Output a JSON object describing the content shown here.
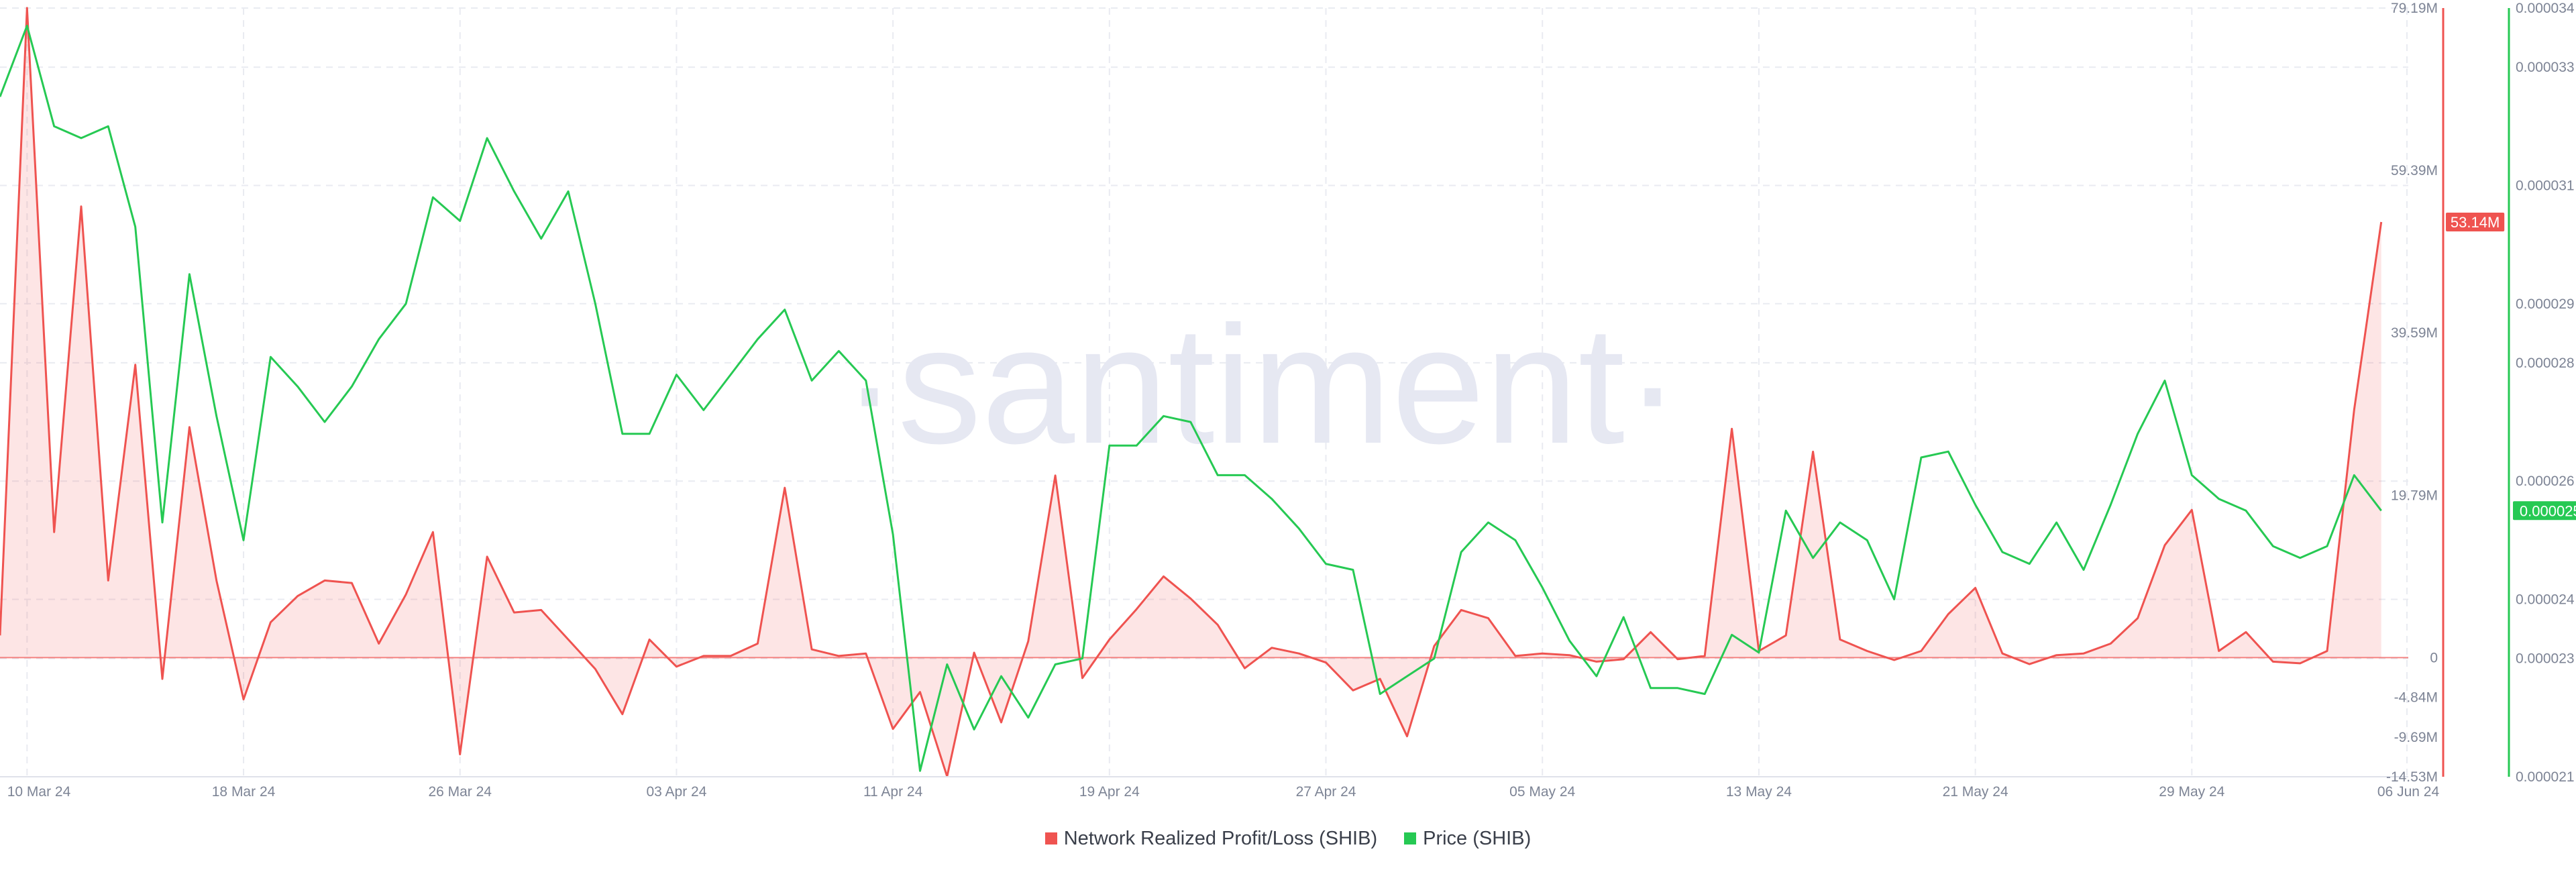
{
  "watermark": "·santiment·",
  "legend": {
    "items": [
      {
        "label": "Network Realized Profit/Loss (SHIB)",
        "color": "#ef5350"
      },
      {
        "label": "Price (SHIB)",
        "color": "#26c953"
      }
    ]
  },
  "badges": {
    "profit_loss": {
      "label": "53.14M",
      "color": "#ef5350"
    },
    "price": {
      "label": "0.000025",
      "color": "#26c953"
    }
  },
  "chart_data": {
    "type": "line",
    "x_tick_labels": [
      "10 Mar 24",
      "18 Mar 24",
      "26 Mar 24",
      "03 Apr 24",
      "11 Apr 24",
      "19 Apr 24",
      "27 Apr 24",
      "05 May 24",
      "13 May 24",
      "21 May 24",
      "29 May 24",
      "06 Jun 24"
    ],
    "x_range": [
      "2024-03-09",
      "2024-06-06"
    ],
    "grid": true,
    "legend_position": "bottom-center",
    "axes": {
      "profit_loss": {
        "side": "right",
        "range": [
          -14.53,
          79.19
        ],
        "unit": "M",
        "ticks": [
          79.19,
          59.39,
          39.59,
          19.79,
          0,
          -4.84,
          -9.69,
          -14.53
        ],
        "tick_labels": [
          "79.19M",
          "59.39M",
          "39.59M",
          "19.79M",
          "0",
          "-4.84M",
          "-9.69M",
          "-14.53M"
        ]
      },
      "price": {
        "side": "right",
        "range": [
          2.1e-05,
          3.4e-05
        ],
        "ticks": [
          3.4e-05,
          3.3e-05,
          3.1e-05,
          2.9e-05,
          2.8e-05,
          2.6e-05,
          2.4e-05,
          2.3e-05,
          2.1e-05
        ],
        "tick_labels": [
          "0.000034",
          "0.000033",
          "0.000031",
          "0.000029",
          "0.000028",
          "0.000026",
          "0.000024",
          "0.000023",
          "0.000021"
        ]
      }
    },
    "series": [
      {
        "name": "Network Realized Profit/Loss (SHIB)",
        "axis": "profit_loss",
        "color": "#ef5350",
        "area": true,
        "points": [
          [
            "2024-03-09",
            2.7
          ],
          [
            "2024-03-10",
            79.2
          ],
          [
            "2024-03-11",
            15.3
          ],
          [
            "2024-03-12",
            55.0
          ],
          [
            "2024-03-13",
            9.4
          ],
          [
            "2024-03-14",
            35.7
          ],
          [
            "2024-03-15",
            -2.6
          ],
          [
            "2024-03-16",
            28.1
          ],
          [
            "2024-03-17",
            9.4
          ],
          [
            "2024-03-18",
            -5.1
          ],
          [
            "2024-03-19",
            4.3
          ],
          [
            "2024-03-20",
            7.5
          ],
          [
            "2024-03-21",
            9.4
          ],
          [
            "2024-03-22",
            9.1
          ],
          [
            "2024-03-23",
            1.7
          ],
          [
            "2024-03-24",
            7.7
          ],
          [
            "2024-03-25",
            15.3
          ],
          [
            "2024-03-26",
            -11.8
          ],
          [
            "2024-03-27",
            12.3
          ],
          [
            "2024-03-28",
            5.5
          ],
          [
            "2024-03-29",
            5.8
          ],
          [
            "2024-03-30",
            2.2
          ],
          [
            "2024-03-31",
            -1.4
          ],
          [
            "2024-04-01",
            -6.9
          ],
          [
            "2024-04-02",
            2.2
          ],
          [
            "2024-04-03",
            -1.1
          ],
          [
            "2024-04-04",
            0.2
          ],
          [
            "2024-04-05",
            0.2
          ],
          [
            "2024-04-06",
            1.7
          ],
          [
            "2024-04-07",
            20.7
          ],
          [
            "2024-04-08",
            1.0
          ],
          [
            "2024-04-09",
            0.2
          ],
          [
            "2024-04-10",
            0.5
          ],
          [
            "2024-04-11",
            -8.7
          ],
          [
            "2024-04-12",
            -4.2
          ],
          [
            "2024-04-13",
            -14.5
          ],
          [
            "2024-04-14",
            0.6
          ],
          [
            "2024-04-15",
            -7.9
          ],
          [
            "2024-04-16",
            2.0
          ],
          [
            "2024-04-17",
            22.2
          ],
          [
            "2024-04-18",
            -2.5
          ],
          [
            "2024-04-19",
            2.2
          ],
          [
            "2024-04-20",
            5.9
          ],
          [
            "2024-04-21",
            9.9
          ],
          [
            "2024-04-22",
            7.2
          ],
          [
            "2024-04-23",
            4.0
          ],
          [
            "2024-04-24",
            -1.3
          ],
          [
            "2024-04-25",
            1.2
          ],
          [
            "2024-04-26",
            0.5
          ],
          [
            "2024-04-27",
            -0.6
          ],
          [
            "2024-04-28",
            -4.0
          ],
          [
            "2024-04-29",
            -2.6
          ],
          [
            "2024-04-30",
            -9.6
          ],
          [
            "2024-05-01",
            1.4
          ],
          [
            "2024-05-02",
            5.8
          ],
          [
            "2024-05-03",
            4.8
          ],
          [
            "2024-05-04",
            0.2
          ],
          [
            "2024-05-05",
            0.5
          ],
          [
            "2024-05-06",
            0.3
          ],
          [
            "2024-05-07",
            -0.5
          ],
          [
            "2024-05-08",
            -0.2
          ],
          [
            "2024-05-09",
            3.1
          ],
          [
            "2024-05-10",
            -0.2
          ],
          [
            "2024-05-11",
            0.2
          ],
          [
            "2024-05-12",
            27.9
          ],
          [
            "2024-05-13",
            0.8
          ],
          [
            "2024-05-14",
            2.7
          ],
          [
            "2024-05-15",
            25.1
          ],
          [
            "2024-05-16",
            2.2
          ],
          [
            "2024-05-17",
            0.8
          ],
          [
            "2024-05-18",
            -0.3
          ],
          [
            "2024-05-19",
            0.8
          ],
          [
            "2024-05-20",
            5.3
          ],
          [
            "2024-05-21",
            8.5
          ],
          [
            "2024-05-22",
            0.5
          ],
          [
            "2024-05-23",
            -0.8
          ],
          [
            "2024-05-24",
            0.3
          ],
          [
            "2024-05-25",
            0.5
          ],
          [
            "2024-05-26",
            1.7
          ],
          [
            "2024-05-27",
            4.8
          ],
          [
            "2024-05-28",
            13.7
          ],
          [
            "2024-05-29",
            18.0
          ],
          [
            "2024-05-30",
            0.8
          ],
          [
            "2024-05-31",
            3.1
          ],
          [
            "2024-06-01",
            -0.5
          ],
          [
            "2024-06-02",
            -0.7
          ],
          [
            "2024-06-03",
            0.8
          ],
          [
            "2024-06-04",
            30.2
          ],
          [
            "2024-06-05",
            53.1
          ]
        ]
      },
      {
        "name": "Price (SHIB)",
        "axis": "price",
        "color": "#26c953",
        "area": false,
        "points": [
          [
            "2024-03-09",
            3.25e-05
          ],
          [
            "2024-03-10",
            3.37e-05
          ],
          [
            "2024-03-11",
            3.2e-05
          ],
          [
            "2024-03-12",
            3.18e-05
          ],
          [
            "2024-03-13",
            3.2e-05
          ],
          [
            "2024-03-14",
            3.03e-05
          ],
          [
            "2024-03-15",
            2.53e-05
          ],
          [
            "2024-03-16",
            2.95e-05
          ],
          [
            "2024-03-17",
            2.71e-05
          ],
          [
            "2024-03-18",
            2.5e-05
          ],
          [
            "2024-03-19",
            2.81e-05
          ],
          [
            "2024-03-20",
            2.76e-05
          ],
          [
            "2024-03-21",
            2.7e-05
          ],
          [
            "2024-03-22",
            2.76e-05
          ],
          [
            "2024-03-23",
            2.84e-05
          ],
          [
            "2024-03-24",
            2.9e-05
          ],
          [
            "2024-03-25",
            3.08e-05
          ],
          [
            "2024-03-26",
            3.04e-05
          ],
          [
            "2024-03-27",
            3.18e-05
          ],
          [
            "2024-03-28",
            3.09e-05
          ],
          [
            "2024-03-29",
            3.01e-05
          ],
          [
            "2024-03-30",
            3.09e-05
          ],
          [
            "2024-03-31",
            2.9e-05
          ],
          [
            "2024-04-01",
            2.68e-05
          ],
          [
            "2024-04-02",
            2.68e-05
          ],
          [
            "2024-04-03",
            2.78e-05
          ],
          [
            "2024-04-04",
            2.72e-05
          ],
          [
            "2024-04-05",
            2.78e-05
          ],
          [
            "2024-04-06",
            2.84e-05
          ],
          [
            "2024-04-07",
            2.89e-05
          ],
          [
            "2024-04-08",
            2.77e-05
          ],
          [
            "2024-04-09",
            2.82e-05
          ],
          [
            "2024-04-10",
            2.77e-05
          ],
          [
            "2024-04-11",
            2.51e-05
          ],
          [
            "2024-04-12",
            2.11e-05
          ],
          [
            "2024-04-13",
            2.29e-05
          ],
          [
            "2024-04-14",
            2.18e-05
          ],
          [
            "2024-04-15",
            2.27e-05
          ],
          [
            "2024-04-16",
            2.2e-05
          ],
          [
            "2024-04-17",
            2.29e-05
          ],
          [
            "2024-04-18",
            2.3e-05
          ],
          [
            "2024-04-19",
            2.66e-05
          ],
          [
            "2024-04-20",
            2.66e-05
          ],
          [
            "2024-04-21",
            2.71e-05
          ],
          [
            "2024-04-22",
            2.7e-05
          ],
          [
            "2024-04-23",
            2.61e-05
          ],
          [
            "2024-04-24",
            2.61e-05
          ],
          [
            "2024-04-25",
            2.57e-05
          ],
          [
            "2024-04-26",
            2.52e-05
          ],
          [
            "2024-04-27",
            2.46e-05
          ],
          [
            "2024-04-28",
            2.45e-05
          ],
          [
            "2024-04-29",
            2.24e-05
          ],
          [
            "2024-04-30",
            2.27e-05
          ],
          [
            "2024-05-01",
            2.3e-05
          ],
          [
            "2024-05-02",
            2.48e-05
          ],
          [
            "2024-05-03",
            2.53e-05
          ],
          [
            "2024-05-04",
            2.5e-05
          ],
          [
            "2024-05-05",
            2.42e-05
          ],
          [
            "2024-05-06",
            2.33e-05
          ],
          [
            "2024-05-07",
            2.27e-05
          ],
          [
            "2024-05-08",
            2.37e-05
          ],
          [
            "2024-05-09",
            2.25e-05
          ],
          [
            "2024-05-10",
            2.25e-05
          ],
          [
            "2024-05-11",
            2.24e-05
          ],
          [
            "2024-05-12",
            2.34e-05
          ],
          [
            "2024-05-13",
            2.31e-05
          ],
          [
            "2024-05-14",
            2.55e-05
          ],
          [
            "2024-05-15",
            2.47e-05
          ],
          [
            "2024-05-16",
            2.53e-05
          ],
          [
            "2024-05-17",
            2.5e-05
          ],
          [
            "2024-05-18",
            2.4e-05
          ],
          [
            "2024-05-19",
            2.64e-05
          ],
          [
            "2024-05-20",
            2.65e-05
          ],
          [
            "2024-05-21",
            2.56e-05
          ],
          [
            "2024-05-22",
            2.48e-05
          ],
          [
            "2024-05-23",
            2.46e-05
          ],
          [
            "2024-05-24",
            2.53e-05
          ],
          [
            "2024-05-25",
            2.45e-05
          ],
          [
            "2024-05-26",
            2.56e-05
          ],
          [
            "2024-05-27",
            2.68e-05
          ],
          [
            "2024-05-28",
            2.77e-05
          ],
          [
            "2024-05-29",
            2.61e-05
          ],
          [
            "2024-05-30",
            2.57e-05
          ],
          [
            "2024-05-31",
            2.55e-05
          ],
          [
            "2024-06-01",
            2.49e-05
          ],
          [
            "2024-06-02",
            2.47e-05
          ],
          [
            "2024-06-03",
            2.49e-05
          ],
          [
            "2024-06-04",
            2.61e-05
          ],
          [
            "2024-06-05",
            2.55e-05
          ]
        ]
      }
    ]
  }
}
